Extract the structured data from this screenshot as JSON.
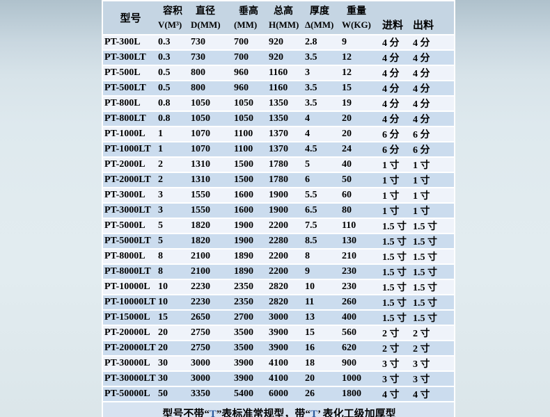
{
  "table": {
    "header": {
      "model": "型号",
      "inlet": "进料",
      "outlet": "出料",
      "columns": [
        {
          "title": "容积",
          "unit": "V(M³)"
        },
        {
          "title": "直径",
          "unit": "D(MM)"
        },
        {
          "title": "垂高",
          "unit": "(MM)"
        },
        {
          "title": "总高",
          "unit": "H(MM)"
        },
        {
          "title": "厚度",
          "unit": "Δ(MM)"
        },
        {
          "title": "重量",
          "unit": "W(KG)"
        }
      ]
    },
    "rows": [
      {
        "model": "PT-300L",
        "volume": "0.3",
        "diameter": "730",
        "vertical_height": "700",
        "total_height": "920",
        "thickness": "2.8",
        "weight": "9",
        "inlet": "4 分",
        "outlet": "4 分",
        "shaded": false
      },
      {
        "model": "PT-300LT",
        "volume": "0.3",
        "diameter": "730",
        "vertical_height": "700",
        "total_height": "920",
        "thickness": "3.5",
        "weight": "12",
        "inlet": "4 分",
        "outlet": "4 分",
        "shaded": true
      },
      {
        "model": "PT-500L",
        "volume": "0.5",
        "diameter": "800",
        "vertical_height": "960",
        "total_height": "1160",
        "thickness": "3",
        "weight": "12",
        "inlet": "4 分",
        "outlet": "4 分",
        "shaded": false
      },
      {
        "model": "PT-500LT",
        "volume": "0.5",
        "diameter": "800",
        "vertical_height": "960",
        "total_height": "1160",
        "thickness": "3.5",
        "weight": "15",
        "inlet": "4 分",
        "outlet": "4 分",
        "shaded": true
      },
      {
        "model": "PT-800L",
        "volume": "0.8",
        "diameter": "1050",
        "vertical_height": "1050",
        "total_height": "1350",
        "thickness": "3.5",
        "weight": "19",
        "inlet": "4 分",
        "outlet": "4 分",
        "shaded": false
      },
      {
        "model": "PT-800LT",
        "volume": "0.8",
        "diameter": "1050",
        "vertical_height": "1050",
        "total_height": "1350",
        "thickness": "4",
        "weight": "20",
        "inlet": "4 分",
        "outlet": "4 分",
        "shaded": true
      },
      {
        "model": "PT-1000L",
        "volume": "1",
        "diameter": "1070",
        "vertical_height": "1100",
        "total_height": "1370",
        "thickness": "4",
        "weight": "20",
        "inlet": "6 分",
        "outlet": "6 分",
        "shaded": false
      },
      {
        "model": "PT-1000LT",
        "volume": "1",
        "diameter": "1070",
        "vertical_height": "1100",
        "total_height": "1370",
        "thickness": "4.5",
        "weight": "24",
        "inlet": "6 分",
        "outlet": "6 分",
        "shaded": true
      },
      {
        "model": "PT-2000L",
        "volume": "2",
        "diameter": "1310",
        "vertical_height": "1500",
        "total_height": "1780",
        "thickness": "5",
        "weight": "40",
        "inlet": "1 寸",
        "outlet": "1 寸",
        "shaded": false
      },
      {
        "model": "PT-2000LT",
        "volume": "2",
        "diameter": "1310",
        "vertical_height": "1500",
        "total_height": "1780",
        "thickness": "6",
        "weight": "50",
        "inlet": "1 寸",
        "outlet": "1 寸",
        "shaded": true
      },
      {
        "model": "PT-3000L",
        "volume": "3",
        "diameter": "1550",
        "vertical_height": "1600",
        "total_height": "1900",
        "thickness": "5.5",
        "weight": "60",
        "inlet": "1 寸",
        "outlet": "1 寸",
        "shaded": false
      },
      {
        "model": "PT-3000LT",
        "volume": "3",
        "diameter": "1550",
        "vertical_height": "1600",
        "total_height": "1900",
        "thickness": "6.5",
        "weight": "80",
        "inlet": "1 寸",
        "outlet": "1 寸",
        "shaded": true
      },
      {
        "model": "PT-5000L",
        "volume": "5",
        "diameter": "1820",
        "vertical_height": "1900",
        "total_height": "2200",
        "thickness": "7.5",
        "weight": "110",
        "inlet": "1.5 寸",
        "outlet": "1.5 寸",
        "shaded": false
      },
      {
        "model": "PT-5000LT",
        "volume": "5",
        "diameter": "1820",
        "vertical_height": "1900",
        "total_height": "2280",
        "thickness": "8.5",
        "weight": "130",
        "inlet": "1.5 寸",
        "outlet": "1.5 寸",
        "shaded": true
      },
      {
        "model": "PT-8000L",
        "volume": "8",
        "diameter": "2100",
        "vertical_height": "1890",
        "total_height": "2200",
        "thickness": "8",
        "weight": "210",
        "inlet": "1.5 寸",
        "outlet": "1.5 寸",
        "shaded": false
      },
      {
        "model": "PT-8000LT",
        "volume": "8",
        "diameter": "2100",
        "vertical_height": "1890",
        "total_height": "2200",
        "thickness": "9",
        "weight": "230",
        "inlet": "1.5 寸",
        "outlet": "1.5 寸",
        "shaded": true
      },
      {
        "model": "PT-10000L",
        "volume": "10",
        "diameter": "2230",
        "vertical_height": "2350",
        "total_height": "2820",
        "thickness": "10",
        "weight": "230",
        "inlet": "1.5 寸",
        "outlet": "1.5 寸",
        "shaded": false
      },
      {
        "model": "PT-10000LT",
        "volume": "10",
        "diameter": "2230",
        "vertical_height": "2350",
        "total_height": "2820",
        "thickness": "11",
        "weight": "260",
        "inlet": "1.5 寸",
        "outlet": "1.5 寸",
        "shaded": true
      },
      {
        "model": "PT-15000L",
        "volume": "15",
        "diameter": "2650",
        "vertical_height": "2700",
        "total_height": "3000",
        "thickness": "13",
        "weight": "400",
        "inlet": "1.5 寸",
        "outlet": "1.5 寸",
        "shaded": true
      },
      {
        "model": "PT-20000L",
        "volume": "20",
        "diameter": "2750",
        "vertical_height": "3500",
        "total_height": "3900",
        "thickness": "15",
        "weight": "560",
        "inlet": "2 寸",
        "outlet": "2 寸",
        "shaded": false
      },
      {
        "model": "PT-20000LT",
        "volume": "20",
        "diameter": "2750",
        "vertical_height": "3500",
        "total_height": "3900",
        "thickness": "16",
        "weight": "620",
        "inlet": "2 寸",
        "outlet": "2 寸",
        "shaded": true
      },
      {
        "model": "PT-30000L",
        "volume": "30",
        "diameter": "3000",
        "vertical_height": "3900",
        "total_height": "4100",
        "thickness": "18",
        "weight": "900",
        "inlet": "3 寸",
        "outlet": "3 寸",
        "shaded": false
      },
      {
        "model": "PT-30000LT",
        "volume": "30",
        "diameter": "3000",
        "vertical_height": "3900",
        "total_height": "4100",
        "thickness": "20",
        "weight": "1000",
        "inlet": "3 寸",
        "outlet": "3 寸",
        "shaded": true
      },
      {
        "model": "PT-50000L",
        "volume": "50",
        "diameter": "3350",
        "vertical_height": "5400",
        "total_height": "6000",
        "thickness": "26",
        "weight": "1800",
        "inlet": "4 寸",
        "outlet": "4 寸",
        "shaded": true
      }
    ],
    "note_parts": [
      {
        "text": "型号不带“",
        "accent": false
      },
      {
        "text": "T",
        "accent": true
      },
      {
        "text": "”表标准常规型，带“",
        "accent": false
      },
      {
        "text": "T",
        "accent": true
      },
      {
        "text": "’ 表化工级加厚型",
        "accent": false
      }
    ]
  },
  "colors": {
    "header_bg": "#c5d5e3",
    "row_light": "#eff3fa",
    "row_shaded": "#cbdcee",
    "note_bg": "#d7e3f1",
    "note_accent": "#2d5b9e",
    "text": "#000000"
  }
}
